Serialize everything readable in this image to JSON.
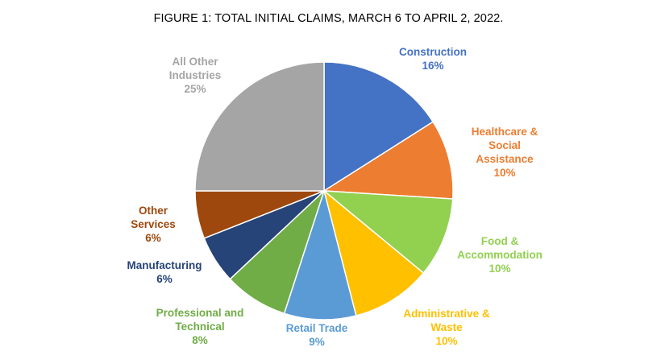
{
  "chart_data": {
    "type": "pie",
    "title": "FIGURE 1: TOTAL INITIAL CLAIMS, MARCH 6 TO APRIL 2, 2022.",
    "slices": [
      {
        "name": "Construction",
        "label_lines": [
          "Construction"
        ],
        "value": 16,
        "value_label": "16%",
        "color": "#4472C4"
      },
      {
        "name": "Healthcare & Social Assistance",
        "label_lines": [
          "Healthcare &",
          "Social",
          "Assistance"
        ],
        "value": 10,
        "value_label": "10%",
        "color": "#ED7D31"
      },
      {
        "name": "Food & Accommodation",
        "label_lines": [
          "Food &",
          "Accommodation"
        ],
        "value": 10,
        "value_label": "10%",
        "color": "#92D050"
      },
      {
        "name": "Administrative & Waste",
        "label_lines": [
          "Administrative &",
          "Waste"
        ],
        "value": 10,
        "value_label": "10%",
        "color": "#FFC000"
      },
      {
        "name": "Retail Trade",
        "label_lines": [
          "Retail Trade"
        ],
        "value": 9,
        "value_label": "9%",
        "color": "#5B9BD5"
      },
      {
        "name": "Professional and Technical",
        "label_lines": [
          "Professional and",
          "Technical"
        ],
        "value": 8,
        "value_label": "8%",
        "color": "#70AD47"
      },
      {
        "name": "Manufacturing",
        "label_lines": [
          "Manufacturing"
        ],
        "value": 6,
        "value_label": "6%",
        "color": "#264478"
      },
      {
        "name": "Other Services",
        "label_lines": [
          "Other",
          "Services"
        ],
        "value": 6,
        "value_label": "6%",
        "color": "#9E480E"
      },
      {
        "name": "All Other Industries",
        "label_lines": [
          "All Other",
          "Industries"
        ],
        "value": 25,
        "value_label": "25%",
        "color": "#A5A5A5"
      }
    ]
  }
}
